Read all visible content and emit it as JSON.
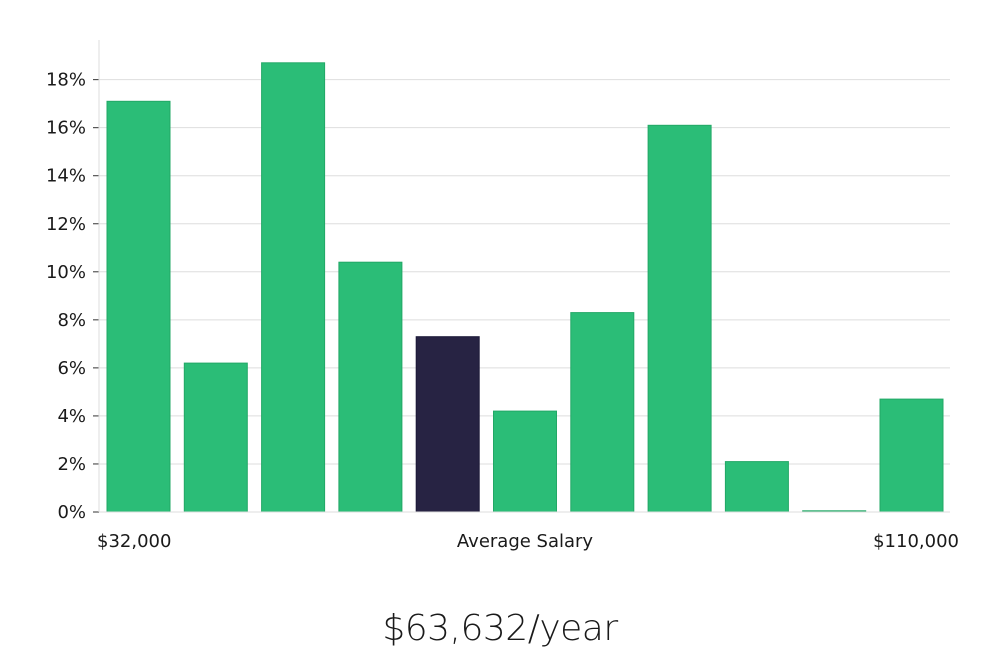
{
  "chart_data": {
    "type": "bar",
    "values": [
      17.1,
      6.2,
      18.7,
      10.4,
      7.3,
      4.2,
      8.3,
      16.1,
      2.1,
      0.05,
      4.7
    ],
    "highlight_index": 4,
    "ylim": [
      0,
      19.5
    ],
    "yticks": [
      "0%",
      "2%",
      "4%",
      "6%",
      "8%",
      "10%",
      "12%",
      "14%",
      "16%",
      "18%"
    ],
    "ytick_values": [
      0,
      2,
      4,
      6,
      8,
      10,
      12,
      14,
      16,
      18
    ],
    "x_min_label": "$32,000",
    "x_center_label": "Average Salary",
    "x_max_label": "$110,000",
    "grid": true,
    "bar_color": "#2bbd77",
    "highlight_color": "#272343"
  },
  "salary_label": "$63,632/year"
}
